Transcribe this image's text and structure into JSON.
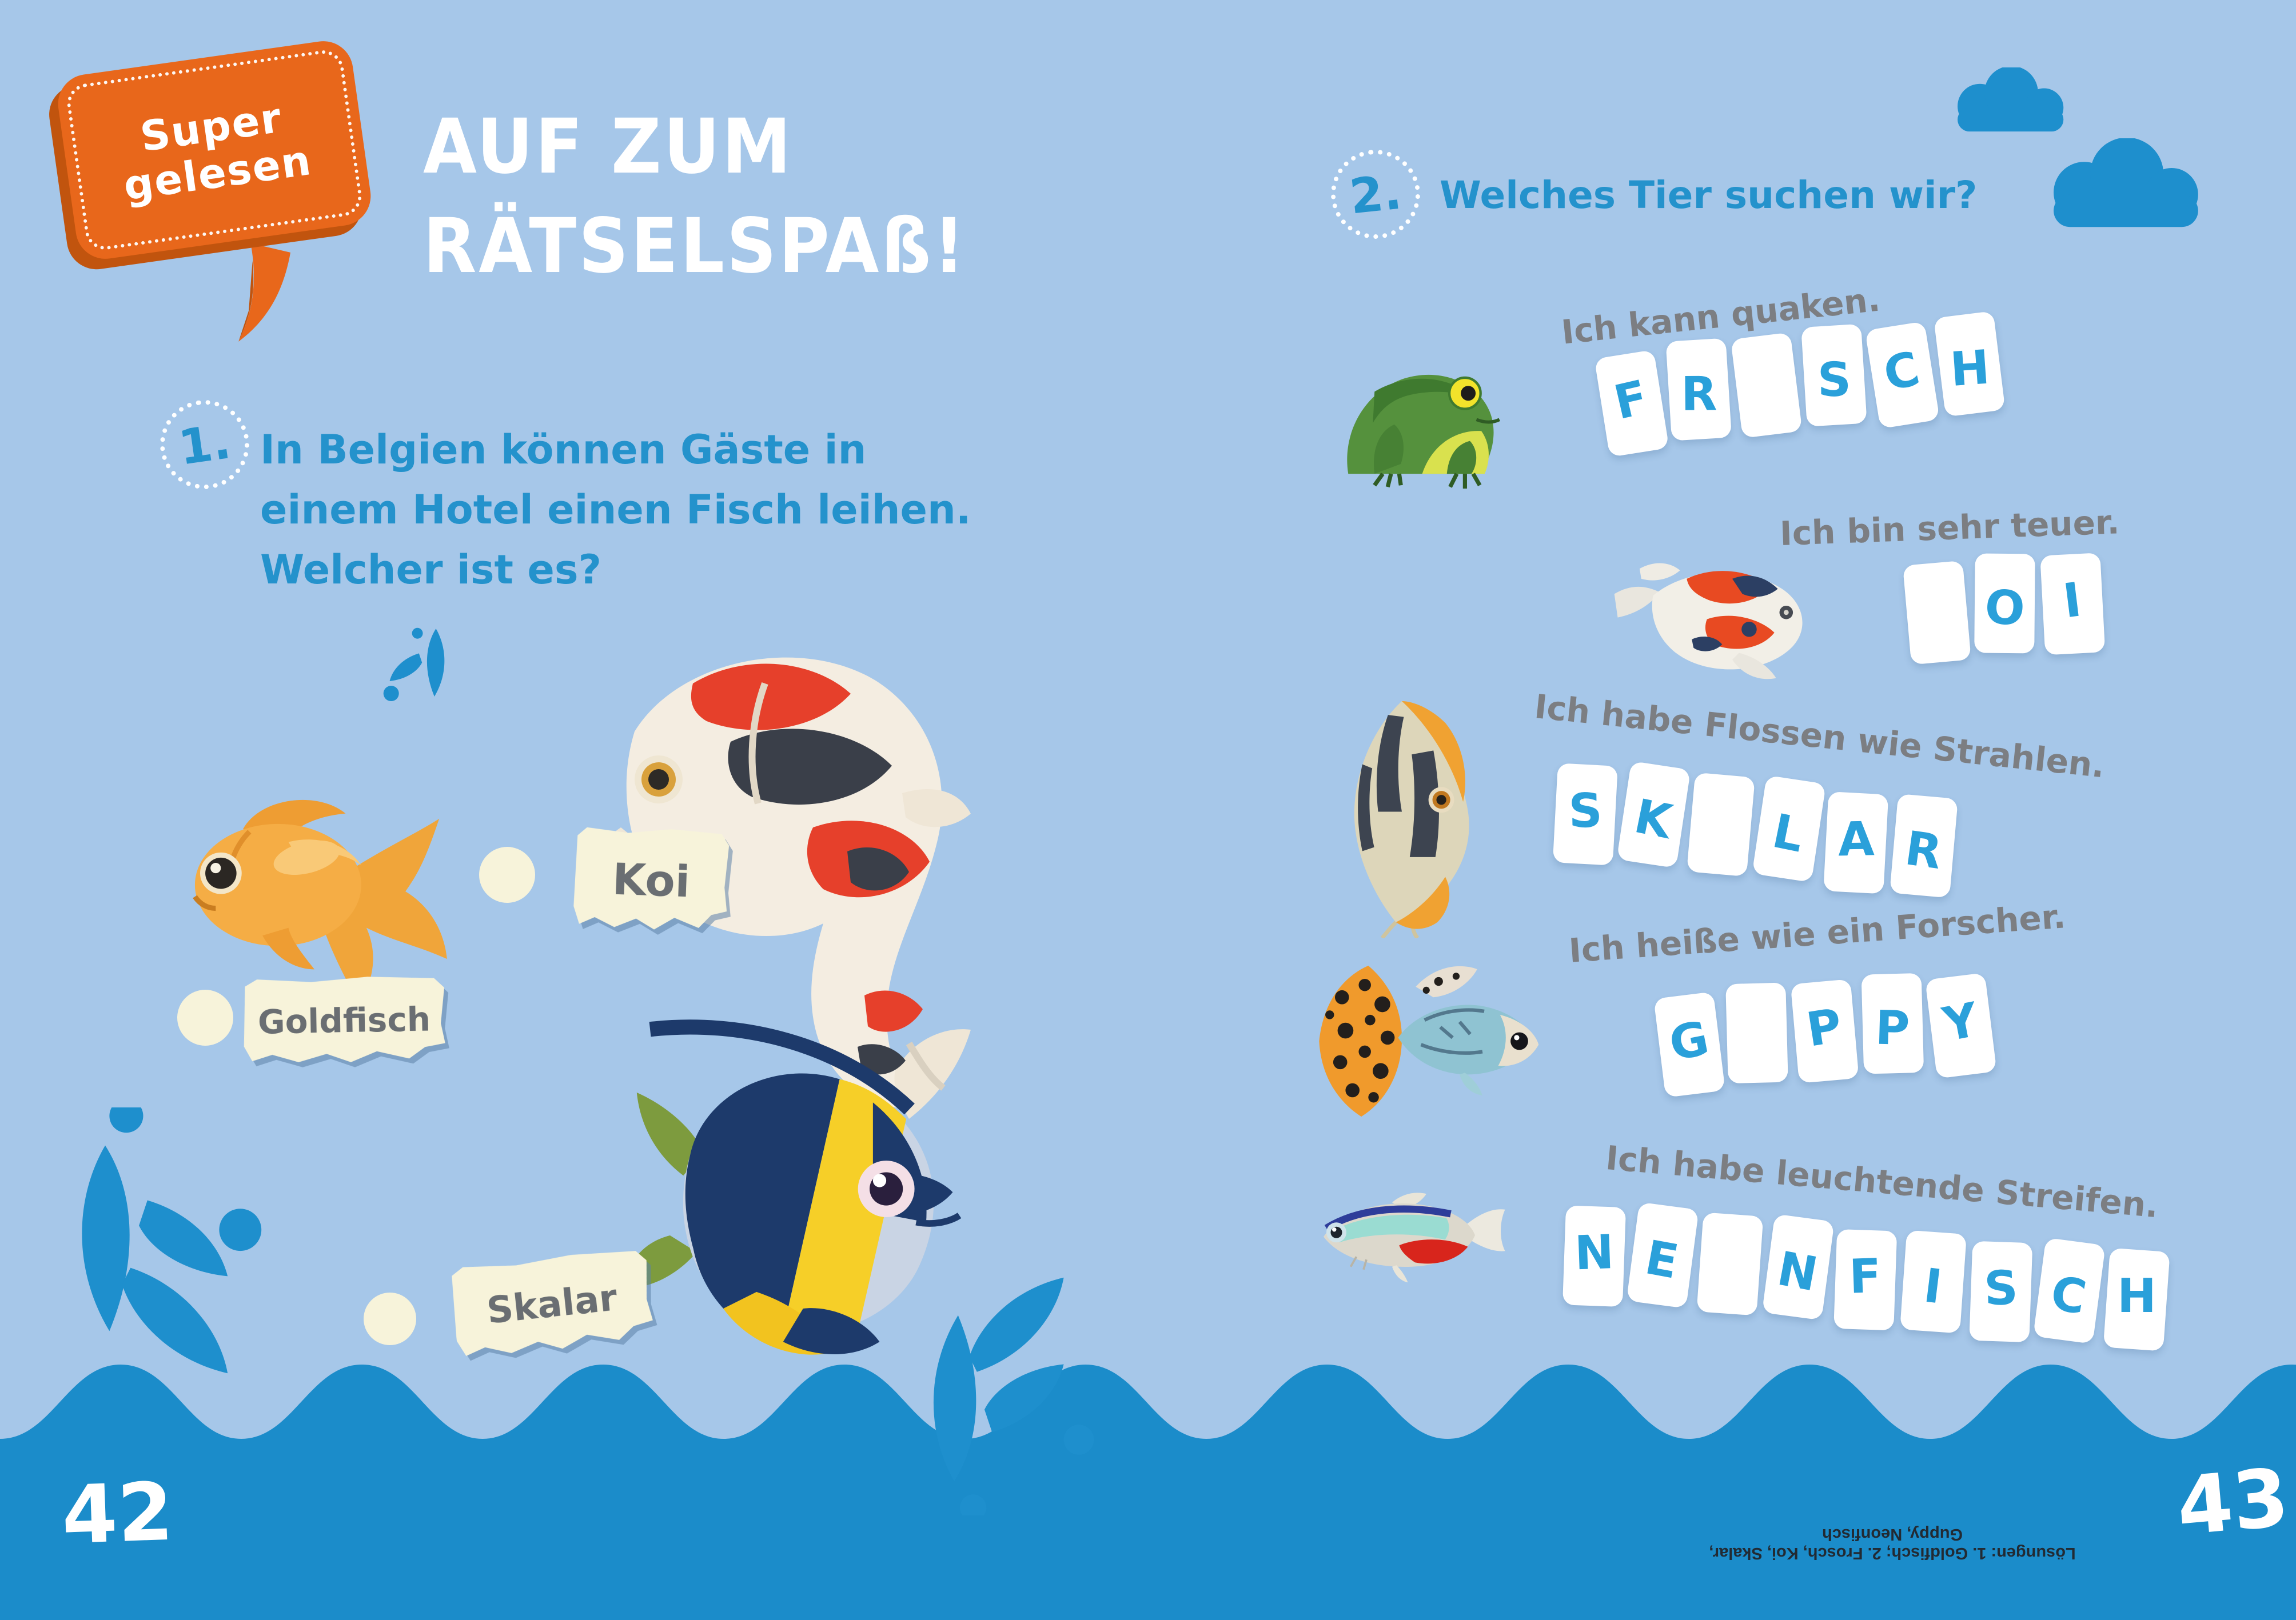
{
  "badge": {
    "line1": "Super",
    "line2": "gelesen"
  },
  "title": {
    "line1": "AUF ZUM",
    "line2": "RÄTSELSPAß!"
  },
  "question1": {
    "number": "1.",
    "text_lines": [
      "In Belgien können Gäste in",
      "einem Hotel einen Fisch leihen.",
      "Welcher ist es?"
    ],
    "options": [
      {
        "label": "Koi",
        "animal": "koi"
      },
      {
        "label": "Goldfisch",
        "animal": "goldfish"
      },
      {
        "label": "Skalar",
        "animal": "bannerfish"
      }
    ]
  },
  "question2": {
    "number": "2.",
    "heading": "Welches Tier suchen wir?",
    "clues": [
      {
        "animal": "frog",
        "hint": "Ich kann quaken.",
        "tiles": [
          "F",
          "R",
          "",
          "S",
          "C",
          "H"
        ]
      },
      {
        "animal": "koi",
        "hint": "Ich bin sehr teuer.",
        "tiles": [
          "",
          "O",
          "I"
        ]
      },
      {
        "animal": "skalar",
        "hint": "Ich habe Flossen wie Strahlen.",
        "tiles": [
          "S",
          "K",
          "",
          "L",
          "A",
          "R"
        ]
      },
      {
        "animal": "guppy",
        "hint": "Ich heiße wie ein Forscher.",
        "tiles": [
          "G",
          "",
          "P",
          "P",
          "Y"
        ]
      },
      {
        "animal": "neonfisch",
        "hint": "Ich habe leuchtende Streifen.",
        "tiles": [
          "N",
          "E",
          "",
          "N",
          "F",
          "I",
          "S",
          "C",
          "H"
        ]
      }
    ]
  },
  "footer": {
    "page_left": "42",
    "page_right": "43",
    "solutions": "Lösungen: 1. Goldfisch; 2. Frosch, Koi, Skalar, Guppy, Neonfisch"
  },
  "colors": {
    "background": "#a6c7e9",
    "wave_band": "#1b8cca",
    "decor_blue": "#1e8fcd",
    "question_blue": "#2492cc",
    "tile_letter_blue": "#2aa0da",
    "hint_gray": "#7c7e82",
    "paper_cream": "#f7f3da",
    "badge_orange": "#e8671b",
    "badge_orange_dark": "#c1540e",
    "text_white": "#ffffff"
  }
}
